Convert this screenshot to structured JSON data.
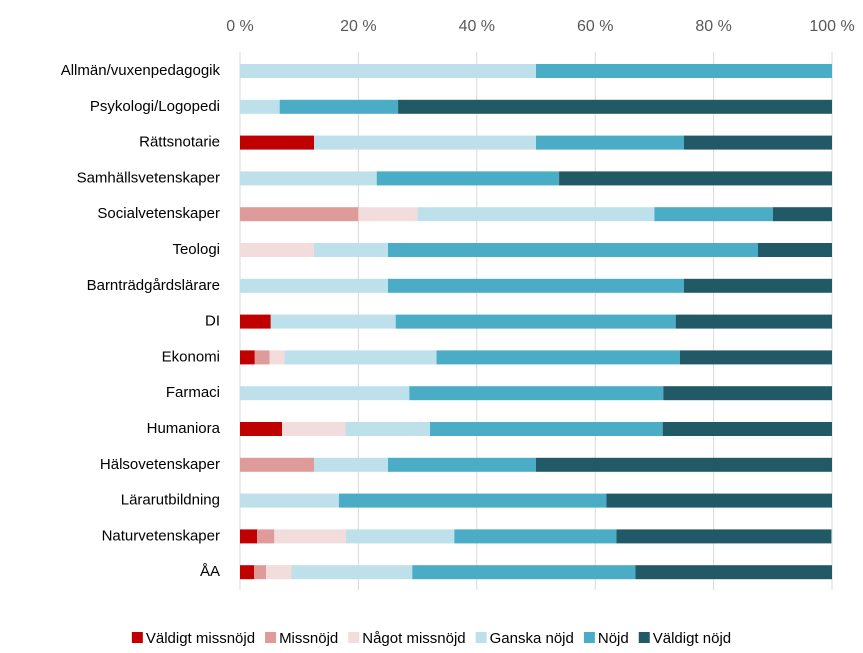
{
  "chart_data": {
    "type": "stacked-bar-horizontal",
    "categories": [
      "Allmän/vuxenpedagogik",
      "Psykologi/Logopedi",
      "Rättsnotarie",
      "Samhällsvetenskaper",
      "Socialvetenskaper",
      "Teologi",
      "Barnträdgårdslärare",
      "DI",
      "Ekonomi",
      "Farmaci",
      "Humaniora",
      "Hälsovetenskaper",
      "Lärarutbildning",
      "Naturvetenskaper",
      "ÅA"
    ],
    "series": [
      {
        "name": "Väldigt missnöjd",
        "color": "#c00000",
        "values": [
          0,
          0,
          12.5,
          0,
          0,
          0,
          0,
          5.2,
          2.5,
          0,
          7.1,
          0,
          0,
          2.9,
          2.4
        ]
      },
      {
        "name": "Missnöjd",
        "color": "#df9a9a",
        "values": [
          0,
          0,
          0,
          0,
          20,
          0,
          0,
          0,
          2.5,
          0,
          0,
          12.5,
          0,
          2.9,
          2
        ]
      },
      {
        "name": "Något missnöjd",
        "color": "#f2dcdc",
        "values": [
          0,
          0,
          0,
          0,
          10,
          12.5,
          0,
          0,
          2.5,
          0,
          10.7,
          0,
          0,
          12.1,
          4.3
        ]
      },
      {
        "name": "Ganska nöjd",
        "color": "#bde0ea",
        "values": [
          50,
          6.7,
          37.5,
          23.1,
          40,
          12.5,
          25,
          21.1,
          25.7,
          28.6,
          14.3,
          12.5,
          16.7,
          18.3,
          20.4
        ]
      },
      {
        "name": "Nöjd",
        "color": "#4bacc6",
        "values": [
          50,
          20,
          25,
          30.8,
          20,
          62.5,
          50,
          47.3,
          41.1,
          42.9,
          39.3,
          25,
          45.2,
          27.4,
          37.7
        ]
      },
      {
        "name": "Väldigt nöjd",
        "color": "#215967",
        "values": [
          0,
          73.3,
          25,
          46.1,
          10,
          12.5,
          25,
          26.4,
          25.7,
          28.5,
          28.6,
          50,
          38.1,
          36.3,
          33.2
        ]
      }
    ],
    "xlim": [
      0,
      100
    ],
    "xticks": [
      {
        "value": 0,
        "label": "0 %"
      },
      {
        "value": 20,
        "label": "20 %"
      },
      {
        "value": 40,
        "label": "40 %"
      },
      {
        "value": 60,
        "label": "60 %"
      },
      {
        "value": 80,
        "label": "80 %"
      },
      {
        "value": 100,
        "label": "100 %"
      }
    ],
    "grid": true,
    "legend": "bottom"
  }
}
